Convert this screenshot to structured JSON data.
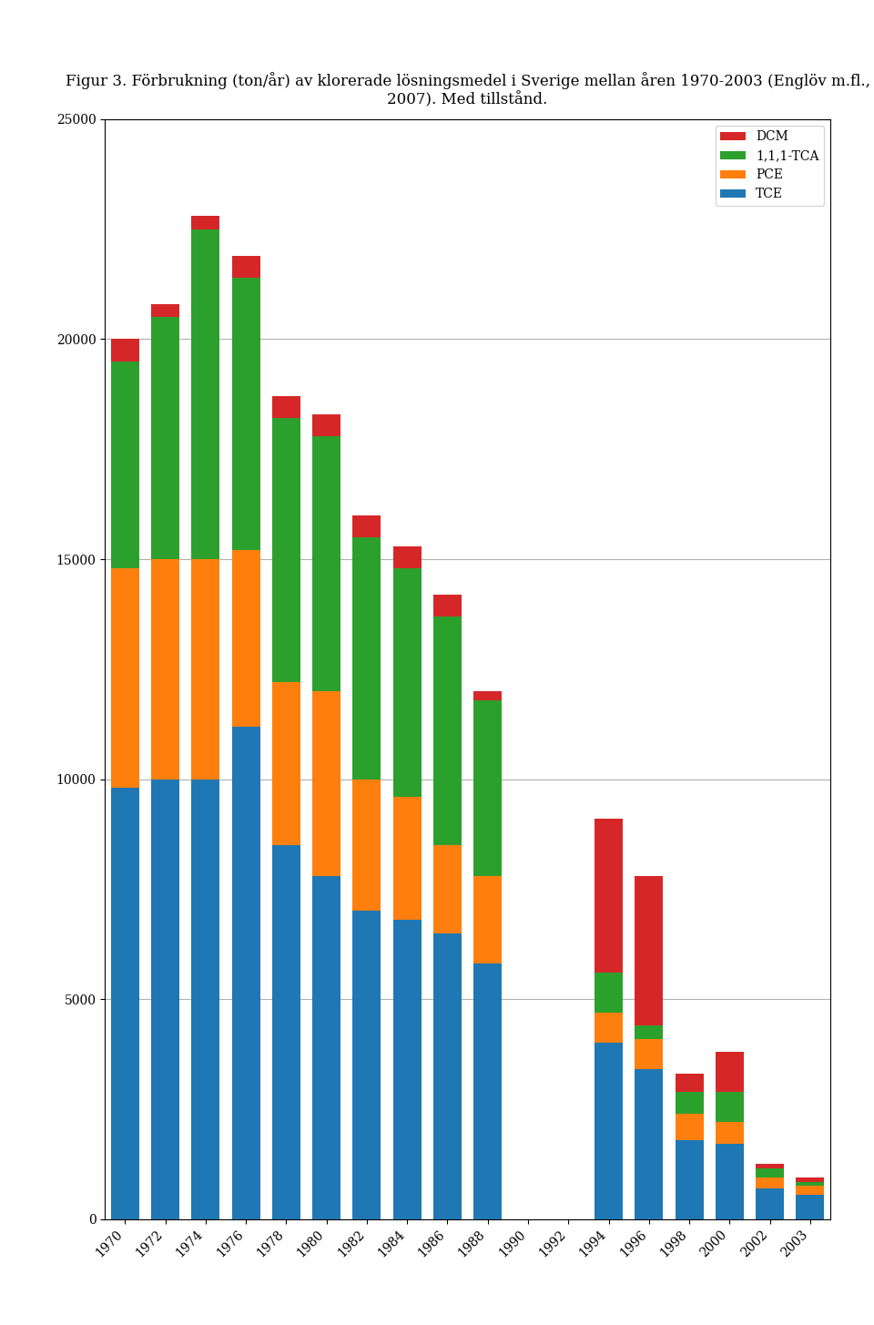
{
  "chart_data": {
    "type": "bar",
    "stacked": true,
    "title": "Figur 3. Förbrukning (ton/år) av klorerade lösningsmedel i Sverige mellan åren 1970-2003 (Englöv m.fl., 2007). Med tillstånd.",
    "categories": [
      "1970",
      "1972",
      "1974",
      "1976",
      "1978",
      "1980",
      "1982",
      "1984",
      "1986",
      "1988",
      "1990",
      "1992",
      "1994",
      "1996",
      "1998",
      "2000",
      "2002",
      "2003"
    ],
    "series": [
      {
        "name": "TCE",
        "values": [
          9800,
          10000,
          10000,
          11200,
          8500,
          7800,
          7000,
          6800,
          6500,
          5800,
          0,
          0,
          4000,
          3400,
          1800,
          1700,
          700,
          550
        ]
      },
      {
        "name": "PCE",
        "values": [
          5000,
          5000,
          5000,
          4000,
          3700,
          4200,
          3000,
          2800,
          2000,
          2000,
          0,
          0,
          700,
          700,
          600,
          500,
          250,
          200
        ]
      },
      {
        "name": "1,1,1-TCA",
        "values": [
          4700,
          5500,
          7500,
          6200,
          6000,
          5800,
          5500,
          5200,
          5200,
          4000,
          0,
          0,
          900,
          300,
          500,
          700,
          200,
          100
        ]
      },
      {
        "name": "DCM",
        "values": [
          500,
          300,
          300,
          500,
          500,
          500,
          500,
          500,
          500,
          200,
          0,
          0,
          3500,
          3400,
          400,
          900,
          100,
          100
        ]
      }
    ],
    "ylim": [
      0,
      25000
    ],
    "yticks": [
      0,
      5000,
      10000,
      15000,
      20000,
      25000
    ],
    "grid": true,
    "legend": "upper right"
  }
}
